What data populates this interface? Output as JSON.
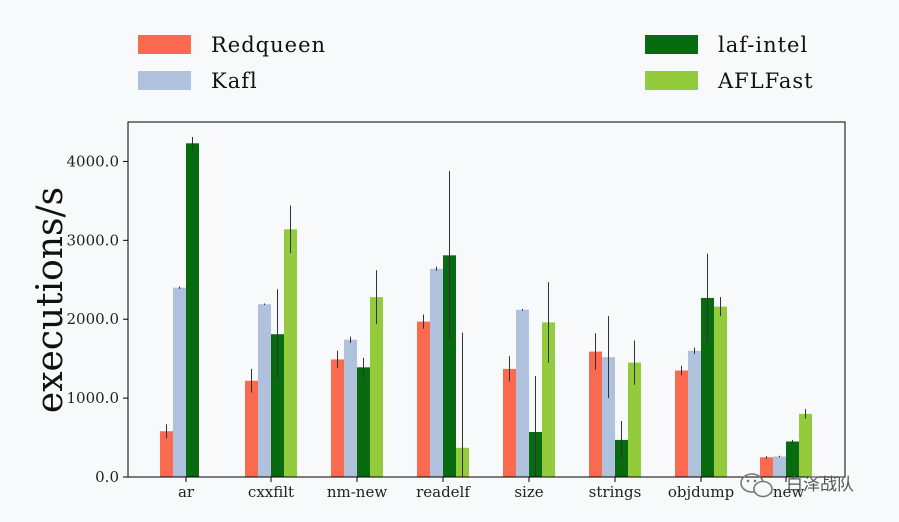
{
  "chart_data": {
    "type": "bar",
    "title": "",
    "xlabel": "",
    "ylabel": "executions/s",
    "ylim": [
      0,
      4500
    ],
    "yticks": [
      0,
      1000,
      2000,
      3000,
      4000
    ],
    "ytick_labels": [
      "0.0",
      "1000.0",
      "2000.0",
      "3000.0",
      "4000.0"
    ],
    "grid": false,
    "legend_position": "top",
    "categories": [
      "ar",
      "cxxfilt",
      "nm-new",
      "readelf",
      "size",
      "strings",
      "objdump",
      "-new"
    ],
    "series": [
      {
        "name": "Redqueen",
        "color": "#fa6a4f",
        "values": [
          580,
          1220,
          1490,
          1970,
          1370,
          1590,
          1350,
          250
        ],
        "errors": [
          90,
          150,
          110,
          90,
          160,
          230,
          60,
          15
        ]
      },
      {
        "name": "Kafl",
        "color": "#b0c1de",
        "values": [
          2400,
          2190,
          1740,
          2640,
          2120,
          1520,
          1600,
          260
        ],
        "errors": [
          15,
          10,
          40,
          25,
          10,
          520,
          40,
          10
        ]
      },
      {
        "name": "laf-intel",
        "color": "#086b0f",
        "values": [
          4230,
          1810,
          1390,
          2810,
          570,
          470,
          2270,
          450
        ],
        "errors": [
          80,
          570,
          120,
          1070,
          710,
          240,
          560,
          20
        ]
      },
      {
        "name": "AFLFast",
        "color": "#93cb3c",
        "values": [
          0,
          3140,
          2280,
          370,
          1960,
          1450,
          2160,
          800
        ],
        "errors": [
          0,
          300,
          340,
          1460,
          510,
          280,
          120,
          60
        ]
      }
    ]
  },
  "watermark": {
    "text": "白泽战队"
  }
}
